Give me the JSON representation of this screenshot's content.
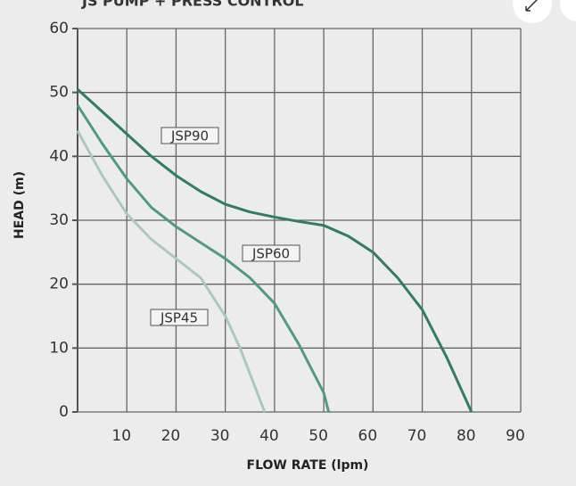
{
  "chart_data": {
    "type": "line",
    "title": "JS PUMP + PRESS CONTROL",
    "x_label": "FLOW RATE (lpm)",
    "y_label": "HEAD (m)",
    "xlim": [
      0,
      90
    ],
    "xticks": [
      10,
      20,
      30,
      40,
      50,
      60,
      70,
      80,
      90
    ],
    "ylim": [
      0,
      60
    ],
    "yticks": [
      0,
      10,
      20,
      30,
      40,
      50,
      60
    ],
    "grid": true,
    "series": [
      {
        "name": "JSP90",
        "color": "#2f7c69",
        "x": [
          0,
          5,
          10,
          15,
          20,
          25,
          30,
          35,
          40,
          45,
          50,
          55,
          60,
          65,
          70,
          75,
          80
        ],
        "values": [
          50.5,
          47,
          43.5,
          40,
          37,
          34.5,
          32.5,
          31.3,
          30.5,
          29.8,
          29.2,
          27.5,
          25,
          21,
          16,
          8.5,
          0
        ]
      },
      {
        "name": "JSP60",
        "color": "#4f9a86",
        "x": [
          0,
          5,
          10,
          15,
          20,
          25,
          30,
          35,
          40,
          45,
          50,
          51
        ],
        "values": [
          48,
          42,
          36.5,
          32,
          29,
          26.5,
          24,
          21,
          17,
          10.5,
          3,
          0
        ]
      },
      {
        "name": "JSP45",
        "color": "#a9c9bc",
        "x": [
          0,
          5,
          10,
          15,
          20,
          25,
          30,
          33,
          36,
          38
        ],
        "values": [
          44,
          37,
          31,
          27,
          24,
          21,
          15,
          10,
          4,
          0
        ]
      }
    ]
  }
}
